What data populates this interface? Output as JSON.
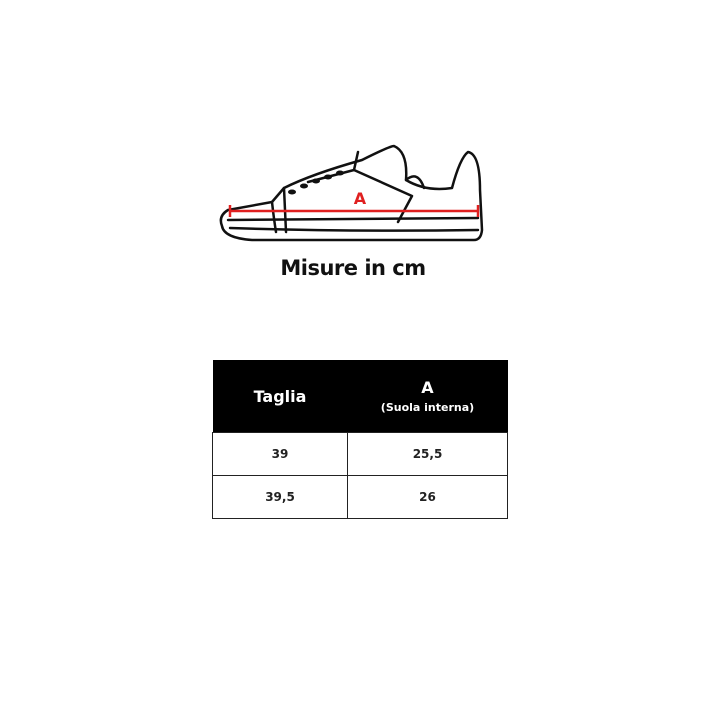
{
  "illustration": {
    "icon": "sneaker-outline-icon",
    "measure_label": "A",
    "measure_color": "#e02020"
  },
  "title": "Misure in cm",
  "table": {
    "headers": {
      "size": "Taglia",
      "a_label": "A",
      "a_sub": "(Suola interna)"
    },
    "rows": [
      {
        "size": "39",
        "a": "25,5"
      },
      {
        "size": "39,5",
        "a": "26"
      }
    ]
  }
}
